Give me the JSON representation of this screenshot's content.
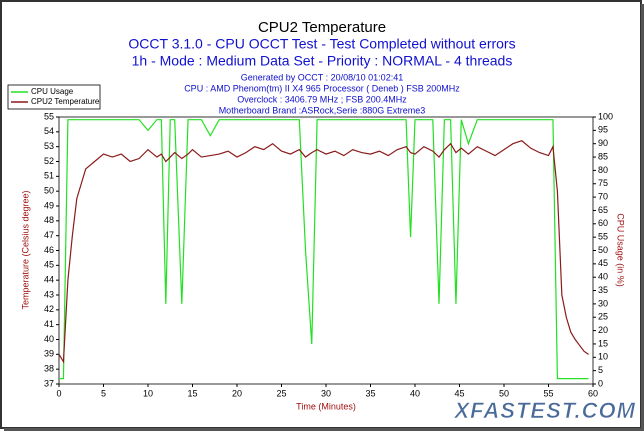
{
  "chart_data": {
    "type": "line",
    "title": "CPU2 Temperature",
    "subtitle": [
      "OCCT 3.1.0 - CPU OCCT Test - Test Completed without errors",
      "1h - Mode : Medium Data Set - Priority : NORMAL - 4 threads"
    ],
    "info": [
      "Generated by OCCT : 20/08/10 01:02:41",
      "CPU : AMD Phenom(tm) II X4 965 Processor ( Deneb ) FSB 200MHz",
      "Overclock : 3406.79 MHz ; FSB 200.4MHz",
      "Motherboard Brand :ASRock,Serie :880G Extreme3"
    ],
    "xlabel": "Time (Minutes)",
    "ylabel": "Temperature (Celsius degree)",
    "y2label": "CPU Usage (in %)",
    "watermark": "XFASTEST.COM",
    "x": [
      0,
      0.5,
      1,
      1.5,
      2,
      3,
      4,
      5,
      6,
      7,
      8,
      9,
      10,
      11,
      11.5,
      12,
      12.5,
      13,
      13.8,
      14.5,
      15,
      16,
      17,
      18,
      19,
      20,
      21,
      22,
      23,
      24,
      25,
      26,
      27,
      27.7,
      28.4,
      29,
      30,
      31,
      32,
      33,
      34,
      35,
      36,
      37,
      38,
      39,
      39.5,
      40,
      41,
      42,
      42.7,
      43.3,
      44,
      44.6,
      45.2,
      46,
      47,
      48,
      49,
      50,
      51,
      52,
      53,
      54,
      55,
      55.5,
      56,
      56.5,
      57,
      57.5,
      58,
      58.5,
      59,
      59.5
    ],
    "series": [
      {
        "name": "CPU Usage",
        "color": "#22e022",
        "axis": "y2",
        "values": [
          2,
          2,
          99,
          99,
          99,
          99,
          99,
          99,
          99,
          99,
          99,
          99,
          95,
          99,
          99,
          30,
          99,
          99,
          30,
          99,
          99,
          99,
          93,
          99,
          99,
          99,
          99,
          99,
          99,
          99,
          99,
          99,
          99,
          50,
          15,
          99,
          99,
          99,
          99,
          99,
          99,
          99,
          99,
          99,
          99,
          99,
          55,
          99,
          99,
          99,
          30,
          99,
          99,
          30,
          99,
          90,
          99,
          99,
          99,
          99,
          99,
          99,
          99,
          99,
          99,
          99,
          2,
          2,
          2,
          2,
          2,
          2,
          2,
          2
        ]
      },
      {
        "name": "CPU2 Temperature",
        "color": "#8b1a1a",
        "axis": "y",
        "values": [
          39,
          38.5,
          44,
          47,
          49.5,
          51.5,
          52,
          52.5,
          52.3,
          52.5,
          52,
          52.2,
          52.8,
          52.3,
          52.5,
          52,
          52.3,
          52.6,
          52.2,
          52.5,
          52.8,
          52.3,
          52.4,
          52.5,
          52.7,
          52.3,
          52.6,
          53,
          52.8,
          53.2,
          52.7,
          52.5,
          52.8,
          52.3,
          52.6,
          52.8,
          52.5,
          52.7,
          52.4,
          52.8,
          52.6,
          52.5,
          52.7,
          52.4,
          52.8,
          53,
          52.6,
          52.5,
          53,
          52.7,
          52.3,
          52.8,
          53.2,
          52.6,
          52.9,
          52.5,
          53,
          52.7,
          52.4,
          52.8,
          53.2,
          53.4,
          52.9,
          52.6,
          52.4,
          53,
          50,
          43,
          41.5,
          40.5,
          40,
          39.6,
          39.2,
          39
        ]
      }
    ],
    "xlim": [
      0,
      60
    ],
    "xticks": [
      0,
      5,
      10,
      15,
      20,
      25,
      30,
      35,
      40,
      45,
      50,
      55,
      60
    ],
    "ylim": [
      37,
      55
    ],
    "yticks": [
      37,
      38,
      39,
      40,
      41,
      42,
      43,
      44,
      45,
      46,
      47,
      48,
      49,
      50,
      51,
      52,
      53,
      54,
      55
    ],
    "y2lim": [
      0,
      100
    ],
    "y2ticks": [
      0,
      5,
      10,
      15,
      20,
      25,
      30,
      35,
      40,
      45,
      50,
      55,
      60,
      65,
      70,
      75,
      80,
      85,
      90,
      95,
      100
    ],
    "legend": "top-left",
    "grid": false
  }
}
